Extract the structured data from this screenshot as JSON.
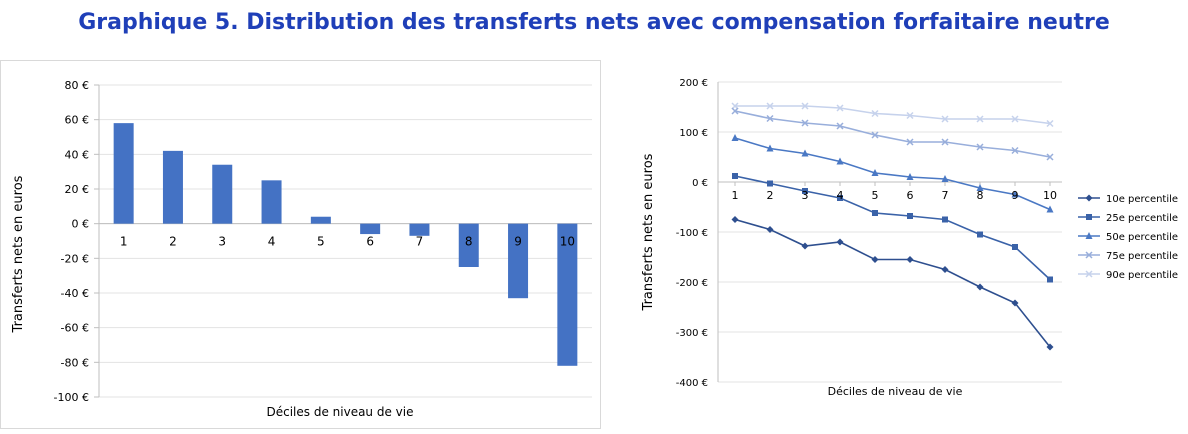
{
  "title": "Graphique 5. Distribution des transferts nets avec compensation forfaitaire neutre",
  "chart_data": [
    {
      "type": "bar",
      "categories": [
        "1",
        "2",
        "3",
        "4",
        "5",
        "6",
        "7",
        "8",
        "9",
        "10"
      ],
      "values": [
        58,
        42,
        34,
        25,
        4,
        -6,
        -7,
        -25,
        -43,
        -82
      ],
      "xlabel": "Déciles de niveau de vie",
      "ylabel": "Transferts nets en euros",
      "ylim": [
        -100,
        80
      ],
      "yticks": [
        "80 €",
        "60 €",
        "40 €",
        "20 €",
        "0 €",
        "-20 €",
        "-40 €",
        "-60 €",
        "-80 €",
        "-100 €"
      ],
      "grid": true,
      "color": "#4472c4"
    },
    {
      "type": "line",
      "x": [
        "1",
        "2",
        "3",
        "4",
        "5",
        "6",
        "7",
        "8",
        "9",
        "10"
      ],
      "series": [
        {
          "name": "10e percentile",
          "values": [
            -75,
            -95,
            -128,
            -120,
            -155,
            -155,
            -175,
            -210,
            -242,
            -330
          ],
          "color": "#2e4f8f",
          "marker": "diamond"
        },
        {
          "name": "25e percentile",
          "values": [
            12,
            -3,
            -18,
            -32,
            -62,
            -68,
            -75,
            -105,
            -130,
            -195
          ],
          "color": "#3a62a8",
          "marker": "square"
        },
        {
          "name": "50e percentile",
          "values": [
            88,
            67,
            57,
            41,
            18,
            10,
            6,
            -12,
            -25,
            -55
          ],
          "color": "#4a78c4",
          "marker": "triangle"
        },
        {
          "name": "75e percentile",
          "values": [
            142,
            127,
            118,
            112,
            94,
            80,
            80,
            70,
            63,
            50
          ],
          "color": "#98aedb",
          "marker": "x"
        },
        {
          "name": "90e percentile",
          "values": [
            152,
            152,
            152,
            148,
            137,
            133,
            126,
            126,
            126,
            117
          ],
          "color": "#c6d2ec",
          "marker": "x"
        }
      ],
      "xlabel": "Déciles de niveau de vie",
      "ylabel": "Transferts nets en euros",
      "ylim": [
        -400,
        200
      ],
      "yticks": [
        "200 €",
        "100 €",
        "0 €",
        "-100 €",
        "-200 €",
        "-300 €",
        "-400 €"
      ],
      "grid": true,
      "legend": "right"
    }
  ]
}
